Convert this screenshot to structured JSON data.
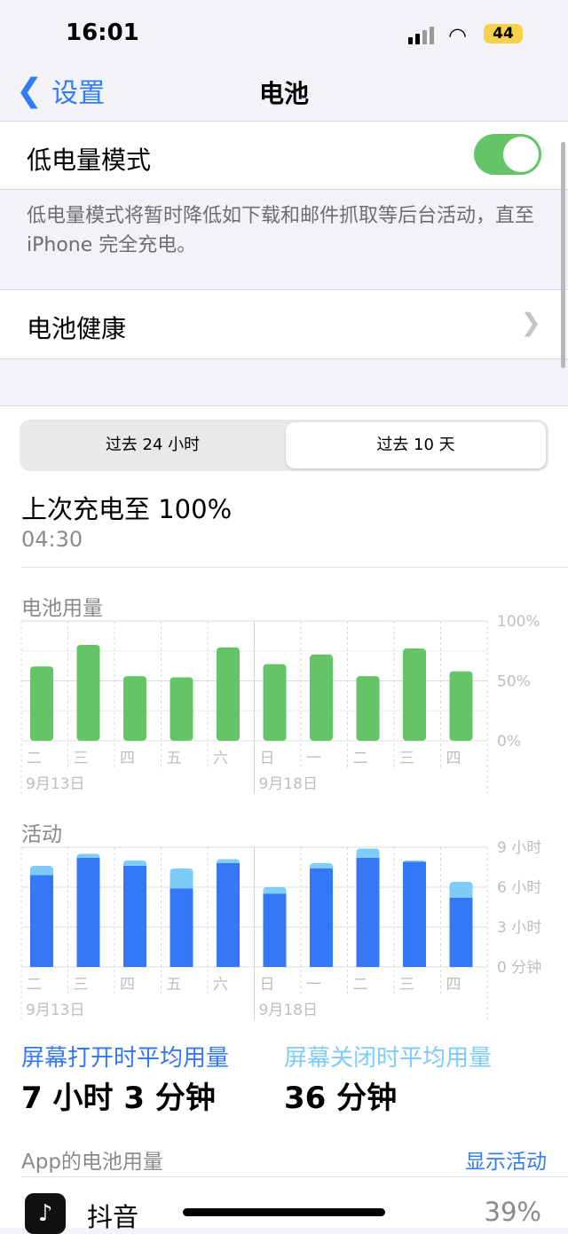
{
  "status": {
    "time": "16:01",
    "battery": "44"
  },
  "nav": {
    "back": "设置",
    "title": "电池"
  },
  "low_power": {
    "label": "低电量模式",
    "enabled": true,
    "note": "低电量模式将暂时降低如下载和邮件抓取等后台活动，直至 iPhone 完全充电。"
  },
  "battery_health": {
    "label": "电池健康"
  },
  "segments": [
    {
      "label": "过去 24 小时",
      "selected": false
    },
    {
      "label": "过去 10 天",
      "selected": true
    }
  ],
  "last_charge": {
    "title": "上次充电至 100%",
    "time": "04:30"
  },
  "colors": {
    "green": "#65c466",
    "blue": "#3478f6",
    "light_blue": "#7fcbfa",
    "accent": "#2f7cf6"
  },
  "chart_data": [
    {
      "type": "bar",
      "title": "电池用量",
      "categories": [
        "二",
        "三",
        "四",
        "五",
        "六",
        "日",
        "一",
        "二",
        "三",
        "四"
      ],
      "date_labels": [
        "9月13日",
        "9月18日"
      ],
      "yticks": [
        "100%",
        "50%",
        "0%"
      ],
      "ylim": [
        0,
        100
      ],
      "values": [
        62,
        80,
        54,
        53,
        78,
        64,
        72,
        54,
        77,
        58
      ]
    },
    {
      "type": "bar",
      "title": "活动",
      "categories": [
        "二",
        "三",
        "四",
        "五",
        "六",
        "日",
        "一",
        "二",
        "三",
        "四"
      ],
      "date_labels": [
        "9月13日",
        "9月18日"
      ],
      "yticks": [
        "9 小时",
        "6 小时",
        "3 小时",
        "0 分钟"
      ],
      "ylim": [
        0,
        9
      ],
      "stacked": true,
      "series": [
        {
          "name": "屏幕打开时平均用量",
          "values": [
            6.9,
            8.2,
            7.6,
            5.9,
            7.8,
            5.5,
            7.4,
            8.2,
            7.9,
            5.2
          ]
        },
        {
          "name": "屏幕关闭时平均用量",
          "values": [
            0.7,
            0.3,
            0.4,
            1.5,
            0.3,
            0.5,
            0.4,
            0.7,
            0.1,
            1.2
          ]
        }
      ]
    }
  ],
  "averages": {
    "screen_on_label": "屏幕打开时平均用量",
    "screen_on_value": "7 小时 3 分钟",
    "screen_off_label": "屏幕关闭时平均用量",
    "screen_off_value": "36 分钟"
  },
  "apps": {
    "header": "App的电池用量",
    "show_activity": "显示活动",
    "items": [
      {
        "name": "抖音",
        "percent": "39%"
      }
    ]
  }
}
